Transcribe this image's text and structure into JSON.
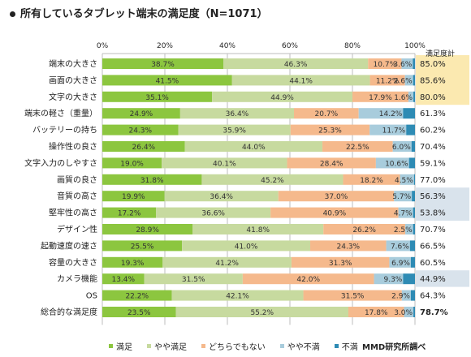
{
  "title": "所有しているタブレット端末の満足度（N=1071）",
  "source": "MMD研究所調べ",
  "satisfaction_header": "満足度計",
  "chart_data": {
    "type": "bar",
    "stacked": true,
    "orientation": "horizontal",
    "xlim": [
      0,
      100
    ],
    "x_ticks": [
      "0%",
      "20%",
      "40%",
      "60%",
      "80%",
      "100%"
    ],
    "grid": true,
    "legend_position": "bottom",
    "categories": [
      "端末の大きさ",
      "画面の大きさ",
      "文字の大きさ",
      "端末の軽さ（重量）",
      "バッテリーの持ち",
      "操作性の良さ",
      "文字入力のしやすさ",
      "画質の良さ",
      "音質の高さ",
      "堅牢性の高さ",
      "デザイン性",
      "起動速度の速さ",
      "容量の大きさ",
      "カメラ機能",
      "OS",
      "総合的な満足度"
    ],
    "series": [
      {
        "name": "満足",
        "color": "#8cc63f",
        "values": [
          38.7,
          41.5,
          35.1,
          24.9,
          24.3,
          26.4,
          19.0,
          31.8,
          19.9,
          17.2,
          28.9,
          25.5,
          19.3,
          13.4,
          22.2,
          23.5
        ]
      },
      {
        "name": "やや満足",
        "color": "#c7da9f",
        "values": [
          46.3,
          44.1,
          44.9,
          36.4,
          35.9,
          44.0,
          40.1,
          45.2,
          36.4,
          36.6,
          41.8,
          41.0,
          41.2,
          31.5,
          42.1,
          55.2
        ]
      },
      {
        "name": "どちらでもない",
        "color": "#f5b98c",
        "values": [
          10.7,
          11.2,
          17.9,
          20.7,
          25.3,
          22.5,
          28.4,
          18.2,
          37.0,
          40.9,
          26.2,
          24.3,
          31.3,
          42.0,
          31.5,
          17.8
        ]
      },
      {
        "name": "やや不満",
        "color": "#a8ccdc",
        "values": [
          3.6,
          2.6,
          1.6,
          14.2,
          11.7,
          6.0,
          10.6,
          4.5,
          5.7,
          4.7,
          2.5,
          7.6,
          6.9,
          9.3,
          2.9,
          3.0
        ]
      },
      {
        "name": "不満",
        "color": "#2e8bb4",
        "values": [
          0.7,
          0.6,
          0.5,
          3.8,
          2.8,
          1.1,
          1.9,
          0.3,
          1.0,
          0.6,
          0.6,
          1.6,
          1.3,
          3.8,
          1.3,
          0.5
        ]
      }
    ],
    "value_labels_by_series": [
      [
        "38.7%",
        "41.5%",
        "35.1%",
        "24.9%",
        "24.3%",
        "26.4%",
        "19.0%",
        "31.8%",
        "19.9%",
        "17.2%",
        "28.9%",
        "25.5%",
        "19.3%",
        "13.4%",
        "22.2%",
        "23.5%"
      ],
      [
        "46.3%",
        "44.1%",
        "44.9%",
        "36.4%",
        "35.9%",
        "44.0%",
        "40.1%",
        "45.2%",
        "36.4%",
        "36.6%",
        "41.8%",
        "41.0%",
        "41.2%",
        "31.5%",
        "42.1%",
        "55.2%"
      ],
      [
        "10.7%",
        "11.2%",
        "17.9%",
        "20.7%",
        "25.3%",
        "22.5%",
        "28.4%",
        "18.2%",
        "37.0%",
        "40.9%",
        "26.2%",
        "24.3%",
        "31.3%",
        "42.0%",
        "31.5%",
        "17.8%"
      ],
      [
        "3.6%",
        "2.6%",
        "1.6%",
        "14.2%",
        "11.7%",
        "6.0%",
        "10.6%",
        "4.5%",
        "5.7%",
        "4.7%",
        "2.5%",
        "7.6%",
        "6.9%",
        "9.3%",
        "2.9%",
        "3.0%"
      ]
    ],
    "satisfaction_totals": [
      "85.0%",
      "85.6%",
      "80.0%",
      "61.3%",
      "60.2%",
      "70.4%",
      "59.1%",
      "77.0%",
      "56.3%",
      "53.8%",
      "70.7%",
      "66.5%",
      "60.5%",
      "44.9%",
      "64.3%",
      "78.7%"
    ],
    "highlight_colors": {
      "top3": "#fbe9b0",
      "bottom3": "#d9e3ec"
    },
    "highlighted_top_rows": [
      0,
      1,
      2
    ],
    "highlighted_bottom_rows": [
      8,
      9,
      13
    ]
  }
}
